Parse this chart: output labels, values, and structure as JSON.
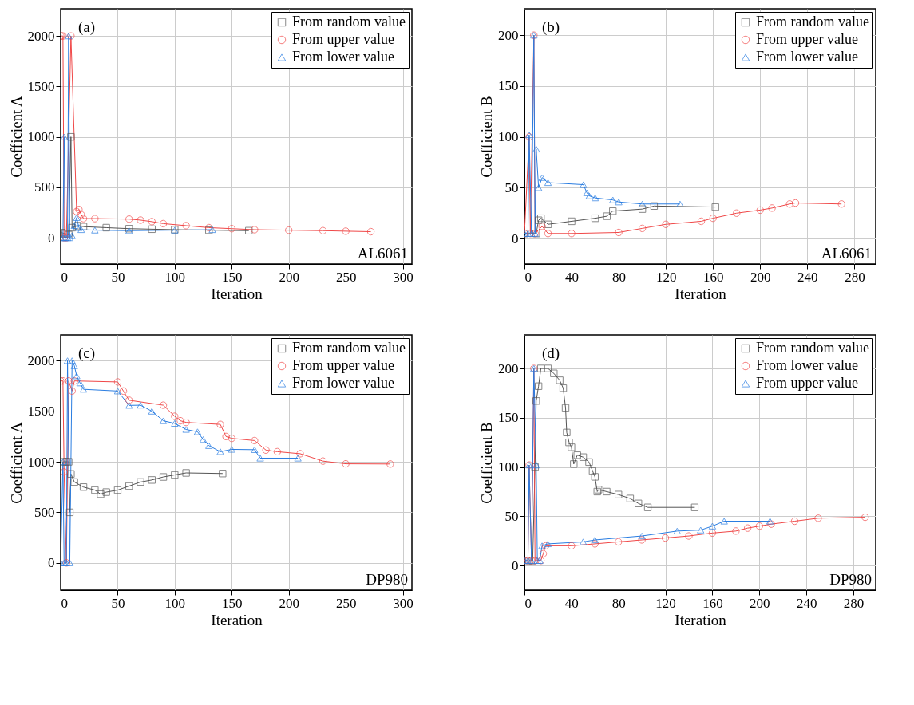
{
  "chart_data": [
    {
      "type": "line",
      "xlabel": "Iteration",
      "ylabel": "Coefficient A",
      "xlim": [
        0,
        308
      ],
      "xticks": [
        0,
        50,
        100,
        150,
        200,
        250,
        300
      ],
      "ylim": [
        -260,
        2270
      ],
      "yticks": [
        0,
        500,
        1000,
        1500,
        2000
      ],
      "grid": true,
      "legend": "top right",
      "line_style": "solid",
      "annotations": [
        "(a)",
        "AL6061"
      ],
      "series": [
        {
          "name": "From random value",
          "color": "#555555",
          "marker": "square",
          "x": [
            1,
            4,
            7,
            9,
            10,
            15,
            20,
            40,
            60,
            80,
            100,
            130,
            165
          ],
          "values": [
            50,
            40,
            30,
            1000,
            100,
            120,
            110,
            100,
            90,
            85,
            80,
            75,
            70
          ]
        },
        {
          "name": "From upper value",
          "color": "#f04848",
          "marker": "circle",
          "x": [
            0,
            1,
            2,
            3,
            5,
            9,
            14,
            16,
            18,
            20,
            30,
            60,
            70,
            80,
            90,
            110,
            130,
            150,
            170,
            200,
            230,
            250,
            272
          ],
          "values": [
            2000,
            2000,
            2000,
            0,
            0,
            2000,
            260,
            280,
            230,
            190,
            190,
            185,
            175,
            160,
            140,
            120,
            100,
            90,
            80,
            75,
            70,
            65,
            60
          ]
        },
        {
          "name": "From lower value",
          "color": "#2a7de1",
          "marker": "triangle",
          "x": [
            0,
            2,
            3,
            4,
            6,
            7,
            8,
            10,
            12,
            14,
            16,
            18,
            30,
            60,
            100,
            133
          ],
          "values": [
            0,
            0,
            1000,
            0,
            0,
            2000,
            0,
            20,
            120,
            200,
            100,
            80,
            75,
            70,
            75,
            80
          ]
        }
      ]
    },
    {
      "type": "line",
      "xlabel": "Iteration",
      "ylabel": "Coefficient B",
      "xlim": [
        0,
        298
      ],
      "xticks": [
        0,
        40,
        80,
        120,
        160,
        200,
        240,
        280
      ],
      "ylim": [
        -25,
        226
      ],
      "yticks": [
        0,
        50,
        100,
        150,
        200
      ],
      "grid": true,
      "legend": "top right",
      "line_style": "solid",
      "annotations": [
        "(b)",
        "AL6061"
      ],
      "series": [
        {
          "name": "From random value",
          "color": "#555555",
          "marker": "square",
          "x": [
            0,
            10,
            12,
            14,
            20,
            40,
            60,
            70,
            75,
            100,
            110,
            162
          ],
          "values": [
            5,
            5,
            18,
            20,
            14,
            17,
            20,
            22,
            27,
            29,
            32,
            31
          ]
        },
        {
          "name": "From upper value",
          "color": "#f04848",
          "marker": "circle",
          "x": [
            0,
            4,
            5,
            8,
            9,
            15,
            20,
            40,
            80,
            100,
            120,
            150,
            160,
            180,
            200,
            210,
            225,
            230,
            269
          ],
          "values": [
            5,
            100,
            5,
            200,
            5,
            12,
            5,
            5,
            6,
            10,
            14,
            17,
            20,
            25,
            28,
            30,
            34,
            35,
            34
          ]
        },
        {
          "name": "From lower value",
          "color": "#2a7de1",
          "marker": "triangle",
          "x": [
            0,
            3,
            4,
            6,
            8,
            9,
            10,
            12,
            15,
            20,
            50,
            53,
            55,
            60,
            75,
            80,
            100,
            132
          ],
          "values": [
            5,
            5,
            102,
            5,
            200,
            5,
            88,
            50,
            60,
            55,
            53,
            45,
            42,
            40,
            38,
            36,
            34,
            34
          ]
        }
      ]
    },
    {
      "type": "line",
      "xlabel": "Iteration",
      "ylabel": "Coefficient A",
      "xlim": [
        0,
        308
      ],
      "xticks": [
        0,
        50,
        100,
        150,
        200,
        250,
        300
      ],
      "ylim": [
        -270,
        2255
      ],
      "yticks": [
        0,
        500,
        1000,
        1500,
        2000
      ],
      "grid": true,
      "legend": "top right",
      "line_style": "solid",
      "annotations": [
        "(c)",
        "DP980"
      ],
      "series": [
        {
          "name": "From random value",
          "color": "#555555",
          "marker": "square",
          "x": [
            2,
            5,
            7,
            8,
            9,
            12,
            20,
            30,
            35,
            40,
            50,
            60,
            70,
            80,
            90,
            100,
            110,
            142
          ],
          "values": [
            1000,
            1000,
            1000,
            500,
            880,
            800,
            750,
            720,
            680,
            700,
            720,
            760,
            800,
            820,
            850,
            870,
            890,
            884
          ]
        },
        {
          "name": "From upper value",
          "color": "#f04848",
          "marker": "circle",
          "x": [
            0,
            2,
            3,
            5,
            7,
            10,
            12,
            50,
            55,
            60,
            90,
            100,
            105,
            110,
            140,
            145,
            150,
            170,
            180,
            190,
            210,
            230,
            250,
            289
          ],
          "values": [
            1800,
            1800,
            900,
            0,
            1800,
            1700,
            1800,
            1790,
            1700,
            1609,
            1560,
            1450,
            1406,
            1390,
            1370,
            1250,
            1232,
            1210,
            1116,
            1100,
            1080,
            1007,
            980,
            978
          ]
        },
        {
          "name": "From lower value",
          "color": "#2a7de1",
          "marker": "triangle",
          "x": [
            0,
            2,
            3,
            5,
            6,
            8,
            10,
            12,
            14,
            17,
            20,
            50,
            60,
            70,
            80,
            90,
            100,
            110,
            120,
            125,
            130,
            140,
            150,
            170,
            175,
            208
          ],
          "values": [
            0,
            1000,
            0,
            0,
            2000,
            0,
            2000,
            1950,
            1850,
            1780,
            1717,
            1700,
            1558,
            1560,
            1500,
            1406,
            1380,
            1320,
            1297,
            1220,
            1160,
            1100,
            1123,
            1120,
            1036,
            1036
          ]
        }
      ]
    },
    {
      "type": "line",
      "xlabel": "Iteration",
      "ylabel": "Coefficient B",
      "xlim": [
        0,
        299
      ],
      "xticks": [
        0,
        40,
        80,
        120,
        160,
        200,
        240,
        280
      ],
      "ylim": [
        -25,
        234
      ],
      "yticks": [
        0,
        50,
        100,
        150,
        200
      ],
      "grid": true,
      "legend": "top right",
      "line_style": "solid",
      "annotations": [
        "(d)",
        "DP980"
      ],
      "series": [
        {
          "name": "From random value",
          "color": "#555555",
          "marker": "square",
          "x": [
            4,
            7,
            9,
            10,
            12,
            14,
            20,
            25,
            30,
            33,
            35,
            36,
            38,
            40,
            42,
            45,
            50,
            55,
            58,
            60,
            62,
            63,
            70,
            80,
            90,
            97,
            105,
            145
          ],
          "values": [
            5,
            5,
            100,
            167,
            182,
            200,
            200,
            195,
            188,
            180,
            160,
            135,
            125,
            120,
            103,
            112,
            110,
            105,
            96,
            90,
            75,
            77,
            75,
            72,
            68,
            63,
            59,
            59
          ]
        },
        {
          "name": "From lower value",
          "color": "#f04848",
          "marker": "circle",
          "x": [
            0,
            3,
            4,
            6,
            8,
            9,
            14,
            16,
            18,
            40,
            60,
            80,
            100,
            120,
            140,
            160,
            180,
            190,
            200,
            210,
            230,
            250,
            290
          ],
          "values": [
            5,
            5,
            102,
            5,
            200,
            5,
            5,
            12,
            20,
            20,
            22,
            24,
            26,
            28,
            30,
            33,
            35,
            38,
            40,
            42,
            45,
            48,
            49
          ]
        },
        {
          "name": "From upper value",
          "color": "#2a7de1",
          "marker": "triangle",
          "x": [
            0,
            3,
            4,
            6,
            8,
            10,
            11,
            13,
            15,
            20,
            50,
            60,
            100,
            130,
            150,
            160,
            170,
            209
          ],
          "values": [
            5,
            5,
            102,
            5,
            200,
            102,
            5,
            5,
            20,
            22,
            24,
            26,
            30,
            35,
            36,
            40,
            45,
            45
          ]
        }
      ]
    }
  ]
}
